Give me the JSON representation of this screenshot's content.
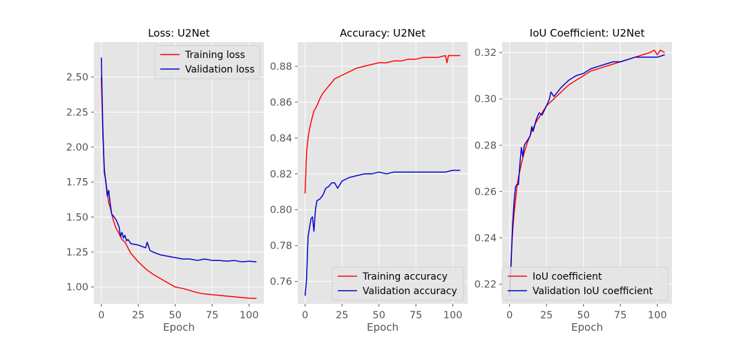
{
  "colors": {
    "plot_bg": "#e5e5e5",
    "grid": "#ffffff",
    "training": "#ff0000",
    "validation": "#0000cc"
  },
  "chart_data": [
    {
      "type": "line",
      "title": "Loss: U2Net",
      "xlabel": "Epoch",
      "ylabel": "",
      "xlim": [
        -5,
        110
      ],
      "ylim": [
        0.88,
        2.75
      ],
      "xticks": [
        0,
        25,
        50,
        75,
        100
      ],
      "yticks": [
        1.0,
        1.25,
        1.5,
        1.75,
        2.0,
        2.25,
        2.5
      ],
      "ytick_decimals": 2,
      "grid": true,
      "legend_position": "top-right",
      "series": [
        {
          "name": "Training loss",
          "color": "#ff0000",
          "points": [
            [
              0,
              2.5
            ],
            [
              1,
              2.1
            ],
            [
              2,
              1.85
            ],
            [
              3,
              1.75
            ],
            [
              4,
              1.68
            ],
            [
              5,
              1.6
            ],
            [
              6,
              1.57
            ],
            [
              8,
              1.48
            ],
            [
              10,
              1.42
            ],
            [
              12,
              1.38
            ],
            [
              14,
              1.34
            ],
            [
              16,
              1.32
            ],
            [
              18,
              1.28
            ],
            [
              20,
              1.24
            ],
            [
              25,
              1.18
            ],
            [
              30,
              1.13
            ],
            [
              35,
              1.09
            ],
            [
              40,
              1.06
            ],
            [
              45,
              1.03
            ],
            [
              50,
              1.0
            ],
            [
              55,
              0.99
            ],
            [
              60,
              0.975
            ],
            [
              65,
              0.96
            ],
            [
              70,
              0.95
            ],
            [
              75,
              0.945
            ],
            [
              80,
              0.94
            ],
            [
              85,
              0.935
            ],
            [
              90,
              0.93
            ],
            [
              95,
              0.925
            ],
            [
              100,
              0.92
            ],
            [
              105,
              0.918
            ]
          ]
        },
        {
          "name": "Validation loss",
          "color": "#0000cc",
          "points": [
            [
              0,
              2.64
            ],
            [
              1,
              2.15
            ],
            [
              2,
              1.82
            ],
            [
              3,
              1.76
            ],
            [
              4,
              1.65
            ],
            [
              5,
              1.69
            ],
            [
              6,
              1.6
            ],
            [
              7,
              1.52
            ],
            [
              8,
              1.51
            ],
            [
              10,
              1.48
            ],
            [
              12,
              1.43
            ],
            [
              13,
              1.36
            ],
            [
              14,
              1.39
            ],
            [
              15,
              1.35
            ],
            [
              16,
              1.37
            ],
            [
              17,
              1.33
            ],
            [
              18,
              1.34
            ],
            [
              20,
              1.31
            ],
            [
              25,
              1.3
            ],
            [
              30,
              1.28
            ],
            [
              31,
              1.32
            ],
            [
              33,
              1.26
            ],
            [
              35,
              1.25
            ],
            [
              40,
              1.23
            ],
            [
              45,
              1.22
            ],
            [
              50,
              1.21
            ],
            [
              55,
              1.2
            ],
            [
              60,
              1.2
            ],
            [
              65,
              1.19
            ],
            [
              70,
              1.2
            ],
            [
              75,
              1.19
            ],
            [
              80,
              1.19
            ],
            [
              85,
              1.185
            ],
            [
              90,
              1.19
            ],
            [
              95,
              1.18
            ],
            [
              100,
              1.185
            ],
            [
              105,
              1.18
            ]
          ]
        }
      ]
    },
    {
      "type": "line",
      "title": "Accuracy: U2Net",
      "xlabel": "Epoch",
      "ylabel": "",
      "xlim": [
        -5,
        110
      ],
      "ylim": [
        0.7475,
        0.8935
      ],
      "xticks": [
        0,
        25,
        50,
        75,
        100
      ],
      "yticks": [
        0.76,
        0.78,
        0.8,
        0.82,
        0.84,
        0.86,
        0.88
      ],
      "ytick_decimals": 2,
      "grid": true,
      "legend_position": "bottom-right",
      "series": [
        {
          "name": "Training accuracy",
          "color": "#ff0000",
          "points": [
            [
              0,
              0.809
            ],
            [
              1,
              0.832
            ],
            [
              2,
              0.84
            ],
            [
              3,
              0.845
            ],
            [
              4,
              0.849
            ],
            [
              5,
              0.852
            ],
            [
              6,
              0.855
            ],
            [
              8,
              0.858
            ],
            [
              10,
              0.862
            ],
            [
              12,
              0.865
            ],
            [
              15,
              0.868
            ],
            [
              18,
              0.871
            ],
            [
              20,
              0.873
            ],
            [
              25,
              0.875
            ],
            [
              30,
              0.877
            ],
            [
              35,
              0.879
            ],
            [
              40,
              0.88
            ],
            [
              45,
              0.881
            ],
            [
              50,
              0.882
            ],
            [
              55,
              0.882
            ],
            [
              60,
              0.883
            ],
            [
              65,
              0.883
            ],
            [
              70,
              0.884
            ],
            [
              75,
              0.884
            ],
            [
              80,
              0.885
            ],
            [
              85,
              0.885
            ],
            [
              90,
              0.885
            ],
            [
              95,
              0.886
            ],
            [
              96,
              0.882
            ],
            [
              97,
              0.886
            ],
            [
              100,
              0.886
            ],
            [
              105,
              0.886
            ]
          ]
        },
        {
          "name": "Validation accuracy",
          "color": "#0000cc",
          "points": [
            [
              0,
              0.752
            ],
            [
              1,
              0.761
            ],
            [
              2,
              0.785
            ],
            [
              3,
              0.79
            ],
            [
              4,
              0.795
            ],
            [
              5,
              0.796
            ],
            [
              6,
              0.788
            ],
            [
              7,
              0.8
            ],
            [
              8,
              0.805
            ],
            [
              10,
              0.806
            ],
            [
              12,
              0.808
            ],
            [
              14,
              0.812
            ],
            [
              16,
              0.813
            ],
            [
              18,
              0.815
            ],
            [
              20,
              0.815
            ],
            [
              22,
              0.812
            ],
            [
              25,
              0.816
            ],
            [
              30,
              0.818
            ],
            [
              35,
              0.819
            ],
            [
              40,
              0.82
            ],
            [
              45,
              0.82
            ],
            [
              50,
              0.821
            ],
            [
              55,
              0.82
            ],
            [
              60,
              0.821
            ],
            [
              65,
              0.821
            ],
            [
              70,
              0.821
            ],
            [
              75,
              0.821
            ],
            [
              80,
              0.821
            ],
            [
              85,
              0.821
            ],
            [
              90,
              0.821
            ],
            [
              95,
              0.821
            ],
            [
              100,
              0.822
            ],
            [
              105,
              0.822
            ]
          ]
        }
      ]
    },
    {
      "type": "line",
      "title": "IoU Coefficient: U2Net",
      "xlabel": "Epoch",
      "ylabel": "",
      "xlim": [
        -5,
        110
      ],
      "ylim": [
        0.2115,
        0.3245
      ],
      "xticks": [
        0,
        25,
        50,
        75,
        100
      ],
      "yticks": [
        0.22,
        0.24,
        0.26,
        0.28,
        0.3,
        0.32
      ],
      "ytick_decimals": 2,
      "grid": true,
      "legend_position": "bottom-right",
      "series": [
        {
          "name": "IoU coefficient",
          "color": "#ff0000",
          "points": [
            [
              0,
              0.216
            ],
            [
              1,
              0.23
            ],
            [
              2,
              0.242
            ],
            [
              3,
              0.25
            ],
            [
              4,
              0.256
            ],
            [
              5,
              0.262
            ],
            [
              6,
              0.266
            ],
            [
              8,
              0.272
            ],
            [
              10,
              0.277
            ],
            [
              12,
              0.281
            ],
            [
              15,
              0.286
            ],
            [
              18,
              0.29
            ],
            [
              20,
              0.292
            ],
            [
              25,
              0.297
            ],
            [
              30,
              0.3
            ],
            [
              35,
              0.303
            ],
            [
              40,
              0.306
            ],
            [
              45,
              0.308
            ],
            [
              50,
              0.31
            ],
            [
              55,
              0.312
            ],
            [
              60,
              0.313
            ],
            [
              65,
              0.314
            ],
            [
              70,
              0.315
            ],
            [
              75,
              0.316
            ],
            [
              80,
              0.317
            ],
            [
              85,
              0.318
            ],
            [
              90,
              0.319
            ],
            [
              95,
              0.32
            ],
            [
              98,
              0.321
            ],
            [
              100,
              0.319
            ],
            [
              102,
              0.321
            ],
            [
              105,
              0.32
            ]
          ]
        },
        {
          "name": "Validation IoU coefficient",
          "color": "#0000cc",
          "points": [
            [
              0,
              0.215
            ],
            [
              1,
              0.228
            ],
            [
              2,
              0.245
            ],
            [
              3,
              0.255
            ],
            [
              4,
              0.262
            ],
            [
              5,
              0.263
            ],
            [
              6,
              0.263
            ],
            [
              7,
              0.272
            ],
            [
              8,
              0.279
            ],
            [
              9,
              0.275
            ],
            [
              10,
              0.28
            ],
            [
              12,
              0.282
            ],
            [
              14,
              0.284
            ],
            [
              15,
              0.288
            ],
            [
              16,
              0.286
            ],
            [
              18,
              0.291
            ],
            [
              20,
              0.294
            ],
            [
              22,
              0.293
            ],
            [
              25,
              0.297
            ],
            [
              27,
              0.3
            ],
            [
              28,
              0.303
            ],
            [
              30,
              0.301
            ],
            [
              35,
              0.305
            ],
            [
              40,
              0.308
            ],
            [
              45,
              0.31
            ],
            [
              50,
              0.311
            ],
            [
              55,
              0.313
            ],
            [
              60,
              0.314
            ],
            [
              65,
              0.315
            ],
            [
              70,
              0.316
            ],
            [
              75,
              0.316
            ],
            [
              80,
              0.317
            ],
            [
              85,
              0.318
            ],
            [
              90,
              0.318
            ],
            [
              95,
              0.318
            ],
            [
              100,
              0.318
            ],
            [
              105,
              0.319
            ]
          ]
        }
      ]
    }
  ]
}
